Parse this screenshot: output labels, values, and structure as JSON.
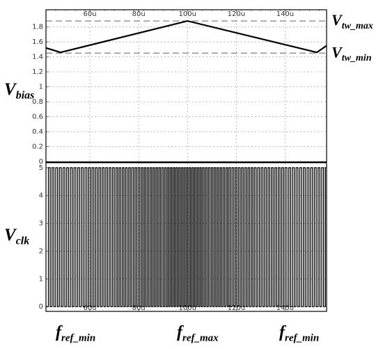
{
  "chart_data": [
    {
      "type": "line",
      "ylabel": {
        "main": "V",
        "sub": "bias"
      },
      "xlim": [
        42,
        157
      ],
      "xticks": [
        {
          "value": 60,
          "label": "60u"
        },
        {
          "value": 80,
          "label": "80u"
        },
        {
          "value": 100,
          "label": "100u"
        },
        {
          "value": 120,
          "label": "120u"
        },
        {
          "value": 140,
          "label": "140u"
        }
      ],
      "ylim": [
        0,
        2.03
      ],
      "yticks": [
        0,
        0.2,
        0.4,
        0.6,
        0.8,
        1,
        1.2,
        1.4,
        1.6,
        1.8
      ],
      "grid": true,
      "series": [
        {
          "color": "#000000",
          "x": [
            42,
            48,
            100,
            153,
            157
          ],
          "values": [
            1.52,
            1.46,
            1.88,
            1.46,
            1.55
          ]
        }
      ],
      "reference_lines": [
        {
          "value": 1.88,
          "color": "#808080",
          "label": {
            "main": "V",
            "sub": "tw_max"
          }
        },
        {
          "value": 1.45,
          "color": "#808080",
          "label": {
            "main": "V",
            "sub": "tw_min"
          }
        }
      ]
    },
    {
      "type": "pulse",
      "ylabel": {
        "main": "V",
        "sub": "clk"
      },
      "xlim": [
        42,
        157
      ],
      "xticks": [
        {
          "value": 60,
          "label": "60u"
        },
        {
          "value": 80,
          "label": "80u"
        },
        {
          "value": 100,
          "label": "100u"
        },
        {
          "value": 120,
          "label": "120u"
        },
        {
          "value": 140,
          "label": "140u"
        }
      ],
      "ylim": [
        -0.17,
        5.17
      ],
      "yticks": [
        0,
        1,
        2,
        3,
        4,
        5
      ],
      "grid": true,
      "series": [
        {
          "color": "#000000",
          "low": 0,
          "high": 5,
          "edges": [
            43,
            44.5,
            46,
            47.5,
            49,
            50.5,
            52,
            53.5,
            55,
            56.5,
            58,
            59.5,
            60.9,
            62.3,
            63.7,
            65.1,
            66.5,
            67.9,
            69.3,
            70.7,
            72,
            73.3,
            74.6,
            75.9,
            77.2,
            78.5,
            79.8,
            81.1,
            82.3,
            83.5,
            84.7,
            85.9,
            87.1,
            88.3,
            89.5,
            90.7,
            91.9,
            93,
            94.1,
            95.2,
            96.3,
            97.4,
            98.5,
            99.6,
            100.7,
            101.8,
            102.9,
            104,
            105.1,
            106.2,
            107.4,
            108.6,
            109.8,
            111,
            112.2,
            113.4,
            114.6,
            115.8,
            117,
            118.3,
            119.6,
            120.9,
            122.2,
            123.5,
            124.8,
            126.1,
            127.4,
            128.8,
            130.2,
            131.6,
            133,
            134.4,
            135.8,
            137.2,
            138.6,
            140,
            141.5,
            143,
            144.5,
            146,
            147.5,
            149,
            150.5,
            152,
            153.5,
            155,
            156.5
          ]
        }
      ],
      "annotations": [
        {
          "main": "f",
          "sub": "ref_min"
        },
        {
          "main": "f",
          "sub": "ref_max"
        },
        {
          "main": "f",
          "sub": "ref_min"
        }
      ]
    }
  ]
}
